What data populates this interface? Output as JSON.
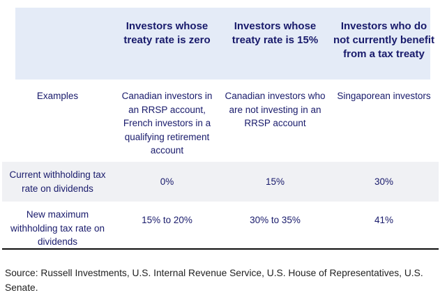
{
  "colors": {
    "header_bg": "#e4ebf7",
    "shaded_row_bg": "#f0f1f4",
    "text_navy": "#181a6b",
    "source_text": "#212121",
    "bottom_rule": "#0d0d0d"
  },
  "chart_data": {
    "type": "table",
    "title": "",
    "columns": [
      "",
      "Investors whose treaty rate is zero",
      "Investors whose treaty rate is 15%",
      "Investors who do not currently benefit from a tax treaty"
    ],
    "rows": [
      {
        "label": "Examples",
        "cells": [
          "Canadian investors in an RRSP account, French investors in a qualifying retirement account",
          "Canadian investors who are not investing in an RRSP account",
          "Singaporean investors"
        ]
      },
      {
        "label": "Current withholding tax rate on dividends",
        "cells": [
          "0%",
          "15%",
          "30%"
        ]
      },
      {
        "label": "New maximum withholding tax rate on dividends",
        "cells": [
          "15% to 20%",
          "30% to 35%",
          "41%"
        ]
      }
    ],
    "source": "Source: Russell Investments, U.S. Internal Revenue Service, U.S. House of Representatives, U.S. Senate."
  },
  "table": {
    "columns": [
      {
        "label": ""
      },
      {
        "label": "Investors whose treaty rate is zero"
      },
      {
        "label": "Investors whose treaty rate is 15%"
      },
      {
        "label": "Investors who do not currently benefit from a tax treaty"
      }
    ],
    "rows": [
      {
        "label": "Examples",
        "cells": [
          "Canadian investors in an RRSP account, French investors in a qualifying retirement account",
          "Canadian investors who are not investing in an RRSP account",
          "Singaporean investors"
        ]
      },
      {
        "label": "Current withholding tax rate on dividends",
        "cells": [
          "0%",
          "15%",
          "30%"
        ]
      },
      {
        "label": "New maximum withholding tax rate on dividends",
        "cells": [
          "15% to 20%",
          "30% to 35%",
          "41%"
        ]
      }
    ]
  },
  "source": "Source: Russell Investments, U.S. Internal Revenue Service, U.S. House of Representatives, U.S. Senate."
}
